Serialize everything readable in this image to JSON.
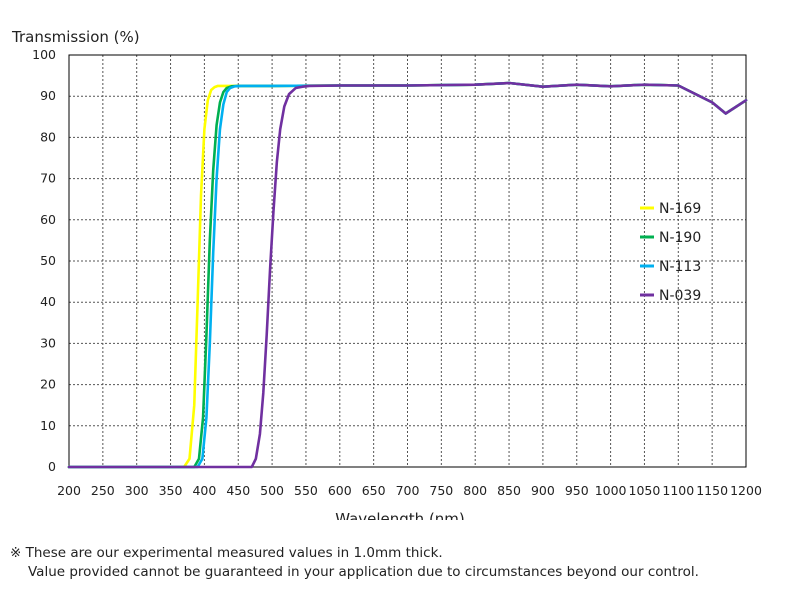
{
  "chart_data": {
    "type": "line",
    "title": "",
    "xlabel": "Wavelength (nm)",
    "ylabel": "Transmission (%)",
    "xlim": [
      200,
      1200
    ],
    "ylim": [
      0,
      100
    ],
    "xticks": [
      200,
      250,
      300,
      350,
      400,
      450,
      500,
      550,
      600,
      650,
      700,
      750,
      800,
      850,
      900,
      950,
      1000,
      1050,
      1100,
      1150,
      1200
    ],
    "yticks": [
      0,
      10,
      20,
      30,
      40,
      50,
      60,
      70,
      80,
      90,
      100
    ],
    "grid": true,
    "legend_position": "right",
    "series": [
      {
        "name": "N-169",
        "color": "#ffff00",
        "x": [
          200,
          370,
          378,
          385,
          390,
          395,
          400,
          405,
          410,
          415,
          420,
          430,
          450,
          500,
          600,
          700,
          800,
          850,
          900,
          950,
          1000,
          1050,
          1100,
          1150,
          1170,
          1200
        ],
        "y": [
          0,
          0,
          2,
          15,
          40,
          66,
          82,
          89,
          91.5,
          92.2,
          92.5,
          92.5,
          92.5,
          92.5,
          92.6,
          92.6,
          92.8,
          93.2,
          92.3,
          92.8,
          92.4,
          92.8,
          92.6,
          88.5,
          85.8,
          89
        ]
      },
      {
        "name": "N-190",
        "color": "#00b050",
        "x": [
          200,
          385,
          392,
          398,
          403,
          408,
          413,
          418,
          423,
          428,
          433,
          440,
          450,
          500,
          600,
          700,
          800,
          850,
          900,
          950,
          1000,
          1050,
          1100,
          1150,
          1170,
          1200
        ],
        "y": [
          0,
          0,
          2,
          12,
          32,
          55,
          72,
          83,
          88.5,
          91,
          92,
          92.4,
          92.5,
          92.5,
          92.6,
          92.6,
          92.8,
          93.2,
          92.3,
          92.8,
          92.4,
          92.8,
          92.6,
          88.5,
          85.8,
          89
        ]
      },
      {
        "name": "N-113",
        "color": "#00b0f0",
        "x": [
          200,
          390,
          397,
          403,
          408,
          413,
          418,
          423,
          428,
          433,
          438,
          445,
          455,
          500,
          600,
          700,
          800,
          850,
          900,
          950,
          1000,
          1050,
          1100,
          1150,
          1170,
          1200
        ],
        "y": [
          0,
          0,
          2,
          12,
          30,
          52,
          70,
          82,
          88,
          91,
          92,
          92.4,
          92.5,
          92.5,
          92.6,
          92.6,
          92.8,
          93.2,
          92.3,
          92.8,
          92.4,
          92.8,
          92.6,
          88.5,
          85.8,
          89
        ]
      },
      {
        "name": "N-039",
        "color": "#7030a0",
        "x": [
          200,
          470,
          476,
          482,
          487,
          492,
          497,
          502,
          507,
          512,
          518,
          525,
          535,
          545,
          555,
          600,
          700,
          800,
          850,
          900,
          950,
          1000,
          1050,
          1100,
          1150,
          1170,
          1200
        ],
        "y": [
          0,
          0,
          2,
          8,
          18,
          32,
          48,
          62,
          74,
          82,
          87.5,
          90.5,
          92,
          92.3,
          92.5,
          92.6,
          92.6,
          92.8,
          93.2,
          92.3,
          92.8,
          92.4,
          92.8,
          92.6,
          88.5,
          85.8,
          89
        ]
      }
    ]
  },
  "note": {
    "line1": "※ These are our experimental measured values in 1.0mm thick.",
    "line2": "Value provided cannot be guaranteed in your application due to circumstances beyond our control."
  }
}
